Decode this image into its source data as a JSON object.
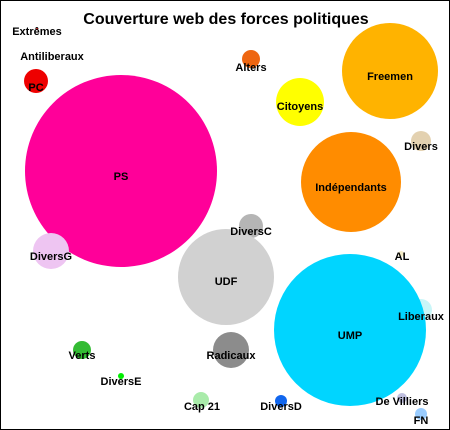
{
  "chart_data": {
    "type": "bubble",
    "title": "Couverture web des forces politiques",
    "bubbles": [
      {
        "name": "Extrêmes",
        "value": 1,
        "color": "#cc0000"
      },
      {
        "name": "Antiliberaux",
        "value": 0,
        "color": "#cc0000"
      },
      {
        "name": "PC",
        "value": 144,
        "color": "#ee0000"
      },
      {
        "name": "Alters",
        "value": 81,
        "color": "#ee6611"
      },
      {
        "name": "Citoyens",
        "value": 576,
        "color": "#ffff00"
      },
      {
        "name": "Freemen",
        "value": 2304,
        "color": "#ffb300"
      },
      {
        "name": "PS",
        "value": 9216,
        "color": "#ff0099"
      },
      {
        "name": "Divers",
        "value": 100,
        "color": "#e3d1b0"
      },
      {
        "name": "Indépendants",
        "value": 2500,
        "color": "#ff8c00"
      },
      {
        "name": "DiversC",
        "value": 144,
        "color": "#b5b5b5"
      },
      {
        "name": "DiversG",
        "value": 324,
        "color": "#eec5f2"
      },
      {
        "name": "AL",
        "value": 9,
        "color": "#f4ecc8"
      },
      {
        "name": "UDF",
        "value": 2304,
        "color": "#d1d1d1"
      },
      {
        "name": "Liberaux",
        "value": 121,
        "color": "#c9f6f8"
      },
      {
        "name": "UMP",
        "value": 5776,
        "color": "#00d5ff"
      },
      {
        "name": "Verts",
        "value": 81,
        "color": "#33bb33"
      },
      {
        "name": "Radicaux",
        "value": 324,
        "color": "#8c8c8c"
      },
      {
        "name": "DiversE",
        "value": 9,
        "color": "#00ee00"
      },
      {
        "name": "De Villiers",
        "value": 25,
        "color": "#bfbfdf"
      },
      {
        "name": "Cap 21",
        "value": 64,
        "color": "#a9ebaa"
      },
      {
        "name": "DiversD",
        "value": 36,
        "color": "#1166ee"
      },
      {
        "name": "FN",
        "value": 36,
        "color": "#99ccff"
      }
    ]
  }
}
